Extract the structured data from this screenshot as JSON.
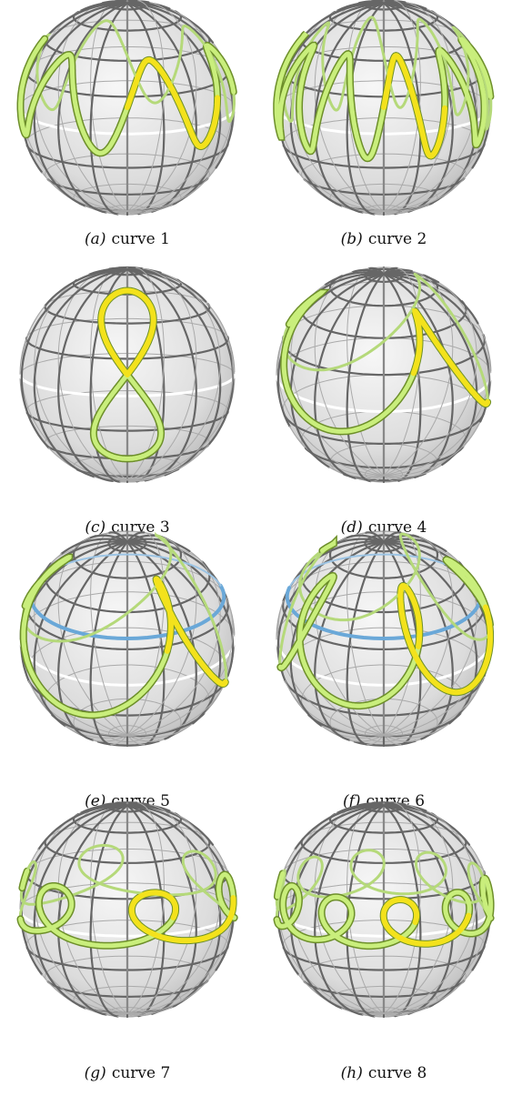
{
  "panels": [
    {
      "label": "(a)",
      "caption": "curve 1"
    },
    {
      "label": "(b)",
      "caption": "curve 2"
    },
    {
      "label": "(c)",
      "caption": "curve 3"
    },
    {
      "label": "(d)",
      "caption": "curve 4"
    },
    {
      "label": "(e)",
      "caption": "curve 5"
    },
    {
      "label": "(f)",
      "caption": "curve 6"
    },
    {
      "label": "(g)",
      "caption": "curve 7"
    },
    {
      "label": "(h)",
      "caption": "curve 8"
    }
  ]
}
